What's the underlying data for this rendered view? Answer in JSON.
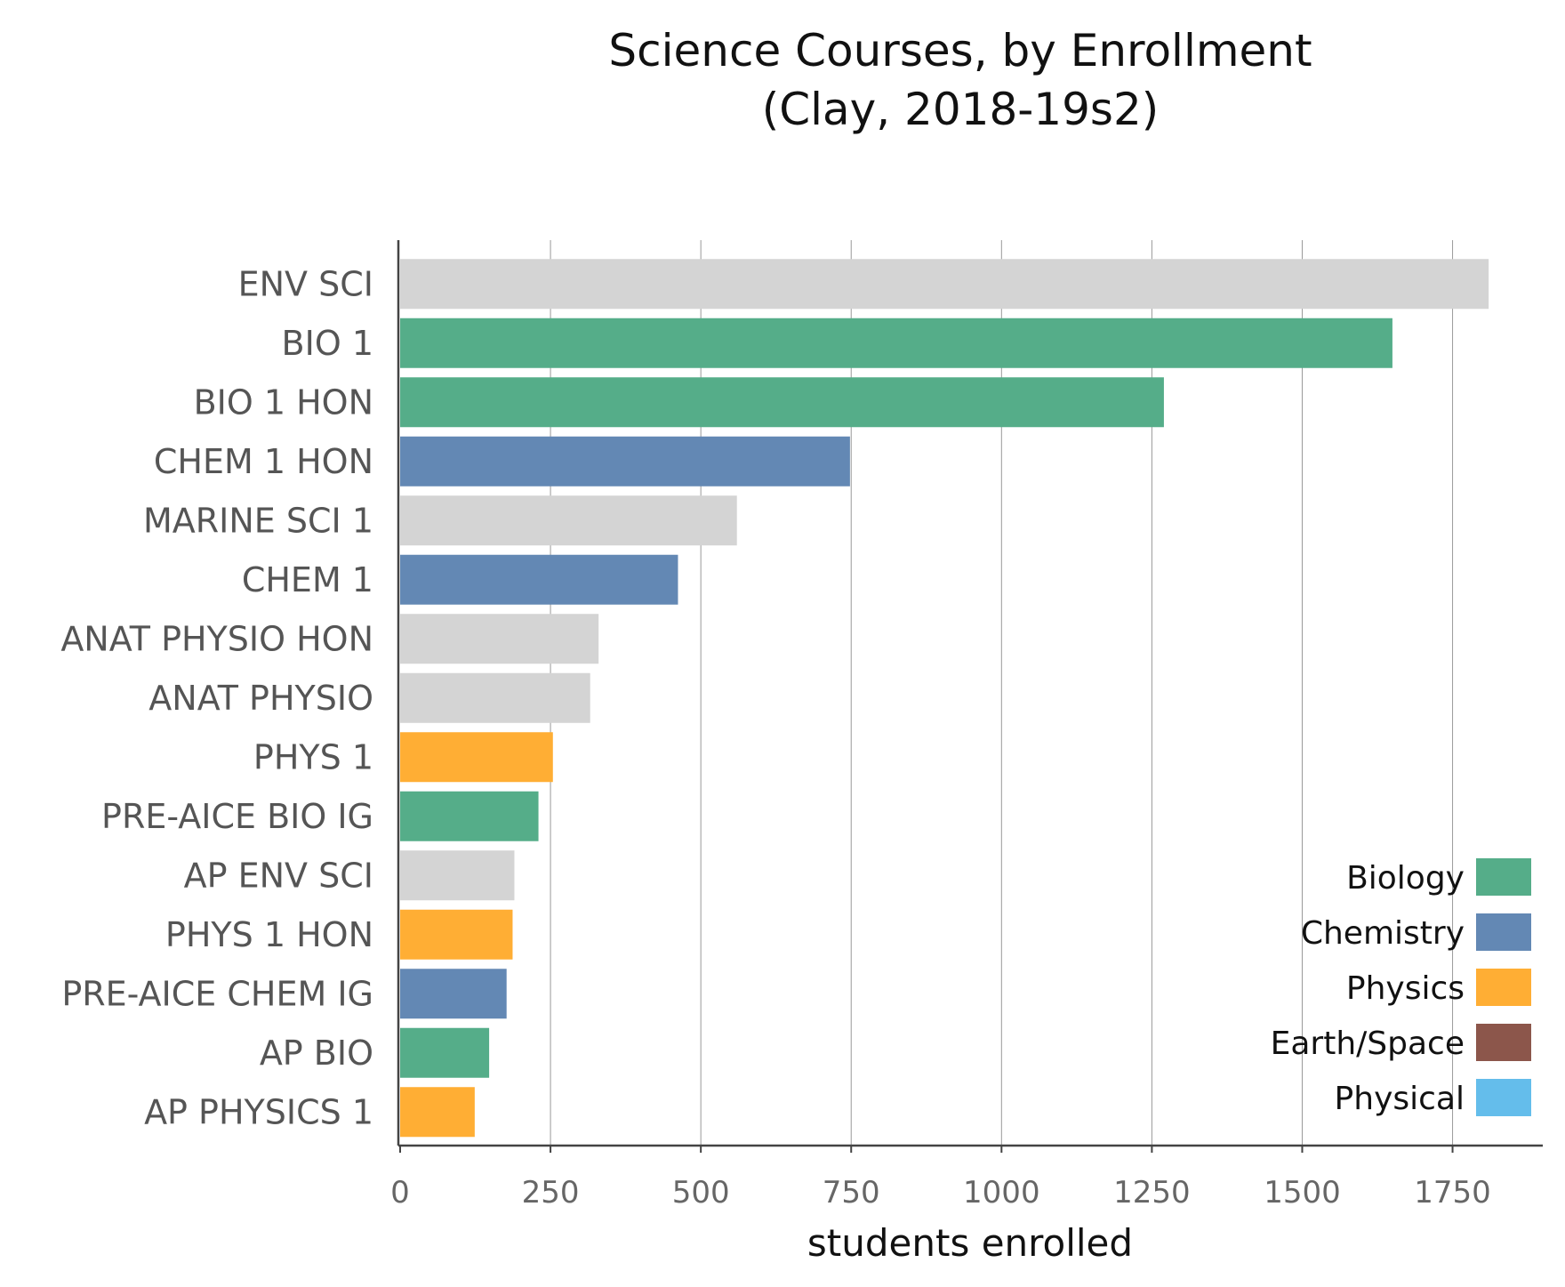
{
  "chart_data": {
    "type": "bar",
    "orientation": "horizontal",
    "title": "Science Courses, by Enrollment",
    "subtitle": "(Clay, 2018-19s2)",
    "xlabel": "students enrolled",
    "ylabel": "",
    "xlim": [
      0,
      1900
    ],
    "xticks": [
      0,
      250,
      500,
      750,
      1000,
      1250,
      1500,
      1750
    ],
    "grid": "vertical",
    "legend_position": "bottom-right",
    "categories": [
      "ENV SCI",
      "BIO 1",
      "BIO 1 HON",
      "CHEM 1 HON",
      "MARINE SCI 1",
      "CHEM 1",
      "ANAT PHYSIO HON",
      "ANAT PHYSIO",
      "PHYS 1",
      "PRE-AICE BIO IG",
      "AP ENV SCI",
      "PHYS 1 HON",
      "PRE-AICE CHEM IG",
      "AP BIO",
      "AP PHYSICS 1"
    ],
    "values": [
      1810,
      1650,
      1270,
      748,
      560,
      462,
      330,
      316,
      254,
      230,
      190,
      187,
      177,
      148,
      124
    ],
    "groups": [
      "Other",
      "Biology",
      "Biology",
      "Chemistry",
      "Other",
      "Chemistry",
      "Other",
      "Other",
      "Physics",
      "Biology",
      "Other",
      "Physics",
      "Chemistry",
      "Biology",
      "Physics"
    ],
    "legend": [
      {
        "name": "Biology",
        "color": "#55AD89"
      },
      {
        "name": "Chemistry",
        "color": "#6388B4"
      },
      {
        "name": "Physics",
        "color": "#FFAE34"
      },
      {
        "name": "Earth/Space",
        "color": "#8C564B"
      },
      {
        "name": "Physical",
        "color": "#64BDEB"
      }
    ],
    "other_color": "#D4D4D4"
  }
}
